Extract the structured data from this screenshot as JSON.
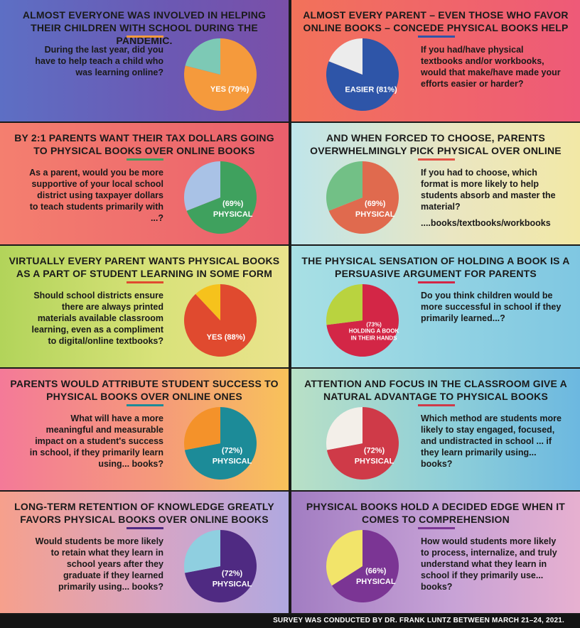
{
  "footer": "SURVEY WAS CONDUCTED BY DR. FRANK LUNTZ BETWEEN MARCH 21–24, 2021.",
  "chart_data": [
    {
      "type": "pie",
      "title": "ALMOST EVERYONE WAS INVOLVED IN HELPING THEIR CHILDREN WITH SCHOOL DURING THE PANDEMIC.",
      "question": "During the last year, did you have to help teach a child who was learning online?",
      "slices": [
        {
          "label": "YES (79%)",
          "value": 79,
          "color": "#f59a3c"
        },
        {
          "label": "",
          "value": 21,
          "color": "#7dc9b5"
        }
      ],
      "background": "linear-gradient(90deg,#5d6fc4 0%,#6c58b3 60%,#7a4fa8 100%)",
      "rule_color": "#f59a3c"
    },
    {
      "type": "pie",
      "title": "ALMOST EVERY PARENT – EVEN THOSE WHO FAVOR ONLINE BOOKS – CONCEDE PHYSICAL BOOKS HELP",
      "question": "If you had/have physical textbooks and/or workbooks, would that make/have made your efforts easier or harder?",
      "slices": [
        {
          "label": "EASIER (81%)",
          "value": 81,
          "color": "#2e55a8"
        },
        {
          "label": "",
          "value": 19,
          "color": "#ececec"
        }
      ],
      "background": "linear-gradient(90deg,#f2725a 0%,#ee5a78 100%)",
      "rule_color": "#2e55a8"
    },
    {
      "type": "pie",
      "title": "BY 2:1 PARENTS WANT THEIR TAX DOLLARS GOING TO PHYSICAL BOOKS OVER ONLINE BOOKS",
      "question": "As a parent, would you be more supportive of your local school district using taxpayer dollars to teach students primarily with ...?",
      "slices": [
        {
          "label": "(69%) PHYSICAL",
          "value": 69,
          "color": "#3fa15e"
        },
        {
          "label": "",
          "value": 31,
          "color": "#a9c2e6"
        }
      ],
      "background": "linear-gradient(90deg,#f47f6f 0%,#ea5f6c 100%)",
      "rule_color": "#3fa15e"
    },
    {
      "type": "pie",
      "title": "AND WHEN FORCED TO CHOOSE, PARENTS OVERWHELMINGLY PICK PHYSICAL OVER ONLINE",
      "question": "If you had to choose, which format is more likely to help students absorb and master the material?",
      "extra": "....books/textbooks/workbooks",
      "slices": [
        {
          "label": "(69%) PHYSICAL",
          "value": 69,
          "color": "#e06a4e"
        },
        {
          "label": "",
          "value": 31,
          "color": "#72c086"
        }
      ],
      "background": "linear-gradient(90deg,#bfe5ea 0%,#eae6c2 55%,#f2e8a6 100%)",
      "rule_color": "#e35246"
    },
    {
      "type": "pie",
      "title": "VIRTUALLY EVERY PARENT WANTS PHYSICAL BOOKS AS A PART OF STUDENT LEARNING IN SOME FORM",
      "question": "Should school districts ensure there are always printed materials available classroom learning, even as a compliment to digital/online textbooks?",
      "slices": [
        {
          "label": "YES (88%)",
          "value": 88,
          "color": "#e04a2f"
        },
        {
          "label": "",
          "value": 12,
          "color": "#f6c21c"
        }
      ],
      "background": "linear-gradient(90deg,#b2d45a 0%,#d9e27a 55%,#eae38d 100%)",
      "rule_color": "#e04a2f"
    },
    {
      "type": "pie",
      "title": "THE PHYSICAL SENSATION OF HOLDING A BOOK IS A PERSUASIVE ARGUMENT FOR PARENTS",
      "question": "Do you think children would be more successful in school if they primarily learned...?",
      "slices": [
        {
          "label": "(73%) HOLDING A BOOK IN THEIR HANDS",
          "value": 73,
          "color": "#d32646"
        },
        {
          "label": "",
          "value": 27,
          "color": "#b9d33f"
        }
      ],
      "background": "linear-gradient(90deg,#a8e0e4 0%,#7fc7e2 100%)",
      "rule_color": "#d32646"
    },
    {
      "type": "pie",
      "title": "PARENTS WOULD ATTRIBUTE STUDENT SUCCESS TO PHYSICAL BOOKS OVER ONLINE ONES",
      "question": "What will have a more meaningful and measurable impact on a student's success in school, if they primarily learn using... books?",
      "slices": [
        {
          "label": "(72%) PHYSICAL",
          "value": 72,
          "color": "#1c8b98"
        },
        {
          "label": "",
          "value": 28,
          "color": "#f4922a"
        }
      ],
      "background": "linear-gradient(90deg,#f47a98 0%,#f59a7a 55%,#f8c25a 100%)",
      "rule_color": "#1c8b98"
    },
    {
      "type": "pie",
      "title": "ATTENTION AND FOCUS IN THE CLASSROOM GIVE A NATURAL ADVANTAGE TO PHYSICAL BOOKS",
      "question": "Which method are students more likely to stay engaged, focused, and undistracted in school ... if they learn primarily using... books?",
      "slices": [
        {
          "label": "(72%) PHYSICAL",
          "value": 72,
          "color": "#cf3a48"
        },
        {
          "label": "",
          "value": 28,
          "color": "#f3efe9"
        }
      ],
      "background": "linear-gradient(90deg,#b9e0c6 0%,#8ecfd9 55%,#6cb8e0 100%)",
      "rule_color": "#cf3a48"
    },
    {
      "type": "pie",
      "title": "LONG-TERM RETENTION OF KNOWLEDGE GREATLY FAVORS PHYSICAL BOOKS OVER ONLINE BOOKS",
      "question": "Would students be more likely to retain what they learn in school years after they graduate if they learned primarily using... books?",
      "slices": [
        {
          "label": "(72%) PHYSICAL",
          "value": 72,
          "color": "#4f2a82"
        },
        {
          "label": "",
          "value": 28,
          "color": "#8fcfe0"
        }
      ],
      "background": "linear-gradient(90deg,#f6a08c 0%,#d6a5c6 55%,#b0a8e0 100%)",
      "rule_color": "#4f2a82"
    },
    {
      "type": "pie",
      "title": "PHYSICAL BOOKS HOLD A DECIDED EDGE WHEN IT COMES TO COMPREHENSION",
      "question": "How would students more likely to process, internalize, and truly understand what they learn in school if they primarily use... books?",
      "slices": [
        {
          "label": "(66%) PHYSICAL",
          "value": 66,
          "color": "#7b3594"
        },
        {
          "label": "",
          "value": 34,
          "color": "#f2e46a"
        }
      ],
      "background": "linear-gradient(90deg,#a27dc2 0%,#c7a2d6 55%,#e7b0d0 100%)",
      "rule_color": "#7b3594"
    }
  ]
}
